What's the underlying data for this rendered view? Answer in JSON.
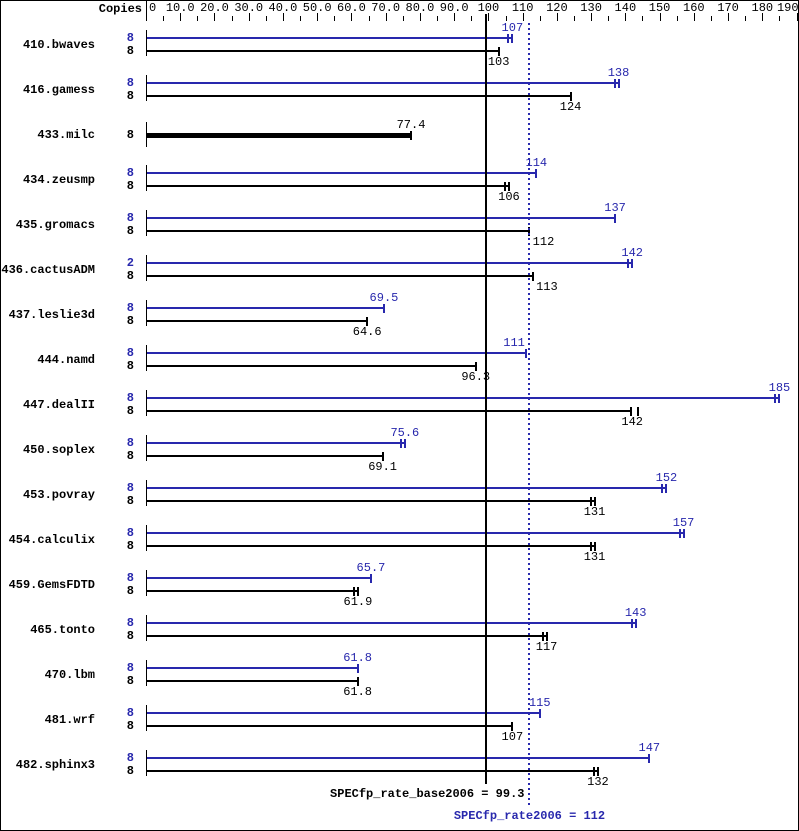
{
  "header": {
    "copies_label": "Copies"
  },
  "colors": {
    "peak_blue": "#2828ad",
    "base_black": "#000000",
    "background": "#ffffff"
  },
  "footer": {
    "base_mean_label": "SPECfp_rate_base2006 = 99.3",
    "peak_mean_label": "SPECfp_rate2006 = 112"
  },
  "chart_data": {
    "type": "bar",
    "orientation": "horizontal",
    "copies_column_label": "Copies",
    "axis": {
      "min": 0,
      "max": 191,
      "major_tick_step": 10,
      "minor_tick_step": 5,
      "major_tick_labels": [
        "0",
        "10.0",
        "20.0",
        "30.0",
        "40.0",
        "50.0",
        "60.0",
        "70.0",
        "80.0",
        "90.0",
        "100",
        "110",
        "120",
        "130",
        "140",
        "150",
        "160",
        "170",
        "180",
        "190"
      ]
    },
    "mean_lines": [
      {
        "series": "base",
        "value": 99.3,
        "style": "solid",
        "label": "SPECfp_rate_base2006 = 99.3"
      },
      {
        "series": "peak",
        "value": 112,
        "style": "dotted",
        "label": "SPECfp_rate2006 = 112"
      }
    ],
    "benchmarks": [
      {
        "name": "410.bwaves",
        "bars": [
          {
            "series": "peak",
            "copies": "8",
            "value": 107,
            "label": "107",
            "marks": 2
          },
          {
            "series": "base",
            "copies": "8",
            "value": 103,
            "label": "103",
            "marks": 1
          }
        ]
      },
      {
        "name": "416.gamess",
        "bars": [
          {
            "series": "peak",
            "copies": "8",
            "value": 138,
            "label": "138",
            "marks": 2
          },
          {
            "series": "base",
            "copies": "8",
            "value": 124,
            "label": "124",
            "marks": 1
          }
        ]
      },
      {
        "name": "433.milc",
        "bars": [
          {
            "series": "merged",
            "copies": "8",
            "value": 77.4,
            "label": "77.4",
            "marks": 1
          }
        ]
      },
      {
        "name": "434.zeusmp",
        "bars": [
          {
            "series": "peak",
            "copies": "8",
            "value": 114,
            "label": "114",
            "marks": 1
          },
          {
            "series": "base",
            "copies": "8",
            "value": 106,
            "label": "106",
            "marks": 2
          }
        ]
      },
      {
        "name": "435.gromacs",
        "bars": [
          {
            "series": "peak",
            "copies": "8",
            "value": 137,
            "label": "137",
            "marks": 1
          },
          {
            "series": "base",
            "copies": "8",
            "value": 112,
            "label": "112",
            "marks": 1,
            "label_dx": 14
          }
        ]
      },
      {
        "name": "436.cactusADM",
        "bars": [
          {
            "series": "peak",
            "copies": "2",
            "value": 142,
            "label": "142",
            "marks": 2
          },
          {
            "series": "base",
            "copies": "8",
            "value": 113,
            "label": "113",
            "marks": 1,
            "label_dx": 14
          }
        ]
      },
      {
        "name": "437.leslie3d",
        "bars": [
          {
            "series": "peak",
            "copies": "8",
            "value": 69.5,
            "label": "69.5",
            "marks": 1
          },
          {
            "series": "base",
            "copies": "8",
            "value": 64.6,
            "label": "64.6",
            "marks": 1
          }
        ]
      },
      {
        "name": "444.namd",
        "bars": [
          {
            "series": "peak",
            "copies": "8",
            "value": 111,
            "label": "111",
            "marks": 1,
            "label_dx": -12
          },
          {
            "series": "base",
            "copies": "8",
            "value": 96.3,
            "label": "96.3",
            "marks": 1
          }
        ]
      },
      {
        "name": "447.dealII",
        "bars": [
          {
            "series": "peak",
            "copies": "8",
            "value": 185,
            "label": "185",
            "marks": 2
          },
          {
            "series": "base",
            "copies": "8",
            "value": 142,
            "label": "142",
            "marks": 2,
            "mark_offsets": [
              -1,
              6
            ]
          }
        ]
      },
      {
        "name": "450.soplex",
        "bars": [
          {
            "series": "peak",
            "copies": "8",
            "value": 75.6,
            "label": "75.6",
            "marks": 2
          },
          {
            "series": "base",
            "copies": "8",
            "value": 69.1,
            "label": "69.1",
            "marks": 1
          }
        ]
      },
      {
        "name": "453.povray",
        "bars": [
          {
            "series": "peak",
            "copies": "8",
            "value": 152,
            "label": "152",
            "marks": 2
          },
          {
            "series": "base",
            "copies": "8",
            "value": 131,
            "label": "131",
            "marks": 2
          }
        ]
      },
      {
        "name": "454.calculix",
        "bars": [
          {
            "series": "peak",
            "copies": "8",
            "value": 157,
            "label": "157",
            "marks": 2
          },
          {
            "series": "base",
            "copies": "8",
            "value": 131,
            "label": "131",
            "marks": 2
          }
        ]
      },
      {
        "name": "459.GemsFDTD",
        "bars": [
          {
            "series": "peak",
            "copies": "8",
            "value": 65.7,
            "label": "65.7",
            "marks": 1
          },
          {
            "series": "base",
            "copies": "8",
            "value": 61.9,
            "label": "61.9",
            "marks": 2
          }
        ]
      },
      {
        "name": "465.tonto",
        "bars": [
          {
            "series": "peak",
            "copies": "8",
            "value": 143,
            "label": "143",
            "marks": 2
          },
          {
            "series": "base",
            "copies": "8",
            "value": 117,
            "label": "117",
            "marks": 2
          }
        ]
      },
      {
        "name": "470.lbm",
        "bars": [
          {
            "series": "peak",
            "copies": "8",
            "value": 61.8,
            "label": "61.8",
            "marks": 1
          },
          {
            "series": "base",
            "copies": "8",
            "value": 61.8,
            "label": "61.8",
            "marks": 1
          }
        ]
      },
      {
        "name": "481.wrf",
        "bars": [
          {
            "series": "peak",
            "copies": "8",
            "value": 115,
            "label": "115",
            "marks": 1
          },
          {
            "series": "base",
            "copies": "8",
            "value": 107,
            "label": "107",
            "marks": 1
          }
        ]
      },
      {
        "name": "482.sphinx3",
        "bars": [
          {
            "series": "peak",
            "copies": "8",
            "value": 147,
            "label": "147",
            "marks": 1
          },
          {
            "series": "base",
            "copies": "8",
            "value": 132,
            "label": "132",
            "marks": 2
          }
        ]
      }
    ]
  }
}
